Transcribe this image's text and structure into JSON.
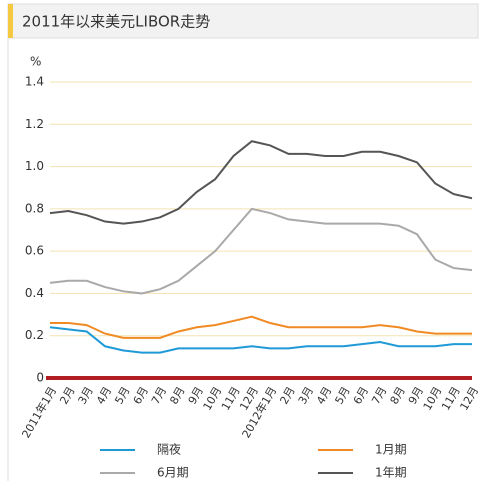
{
  "chart_data": {
    "type": "line",
    "title": "2011年以来美元LIBOR走势",
    "ylabel": "%",
    "categories": [
      "2011年1月",
      "2月",
      "3月",
      "4月",
      "5月",
      "6月",
      "7月",
      "8月",
      "9月",
      "10月",
      "11月",
      "12月",
      "2012年1月",
      "2月",
      "3月",
      "4月",
      "5月",
      "6月",
      "7月",
      "8月",
      "9月",
      "10月",
      "11月",
      "12月"
    ],
    "series": [
      {
        "name": "隔夜",
        "color": "#1f9ad6",
        "values": [
          0.24,
          0.23,
          0.22,
          0.15,
          0.13,
          0.12,
          0.12,
          0.14,
          0.14,
          0.14,
          0.14,
          0.15,
          0.14,
          0.14,
          0.15,
          0.15,
          0.15,
          0.16,
          0.17,
          0.15,
          0.15,
          0.15,
          0.16,
          0.16
        ]
      },
      {
        "name": "1月期",
        "color": "#f08a24",
        "values": [
          0.26,
          0.26,
          0.25,
          0.21,
          0.19,
          0.19,
          0.19,
          0.22,
          0.24,
          0.25,
          0.27,
          0.29,
          0.26,
          0.24,
          0.24,
          0.24,
          0.24,
          0.24,
          0.25,
          0.24,
          0.22,
          0.21,
          0.21,
          0.21
        ]
      },
      {
        "name": "6月期",
        "color": "#a9a9a9",
        "values": [
          0.45,
          0.46,
          0.46,
          0.43,
          0.41,
          0.4,
          0.42,
          0.46,
          0.53,
          0.6,
          0.7,
          0.8,
          0.78,
          0.75,
          0.74,
          0.73,
          0.73,
          0.73,
          0.73,
          0.72,
          0.68,
          0.56,
          0.52,
          0.51
        ]
      },
      {
        "name": "1年期",
        "color": "#555555",
        "values": [
          0.78,
          0.79,
          0.77,
          0.74,
          0.73,
          0.74,
          0.76,
          0.8,
          0.88,
          0.94,
          1.05,
          1.12,
          1.1,
          1.06,
          1.06,
          1.05,
          1.05,
          1.07,
          1.07,
          1.05,
          1.02,
          0.92,
          0.87,
          0.85
        ]
      }
    ],
    "ylim": [
      0,
      1.4
    ],
    "yticks": [
      0,
      0.2,
      0.4,
      0.6,
      0.8,
      {
        "value": 1,
        "label": "1.0"
      },
      1.2,
      1.4
    ],
    "grid": true,
    "axis_color": "#b01e23"
  }
}
